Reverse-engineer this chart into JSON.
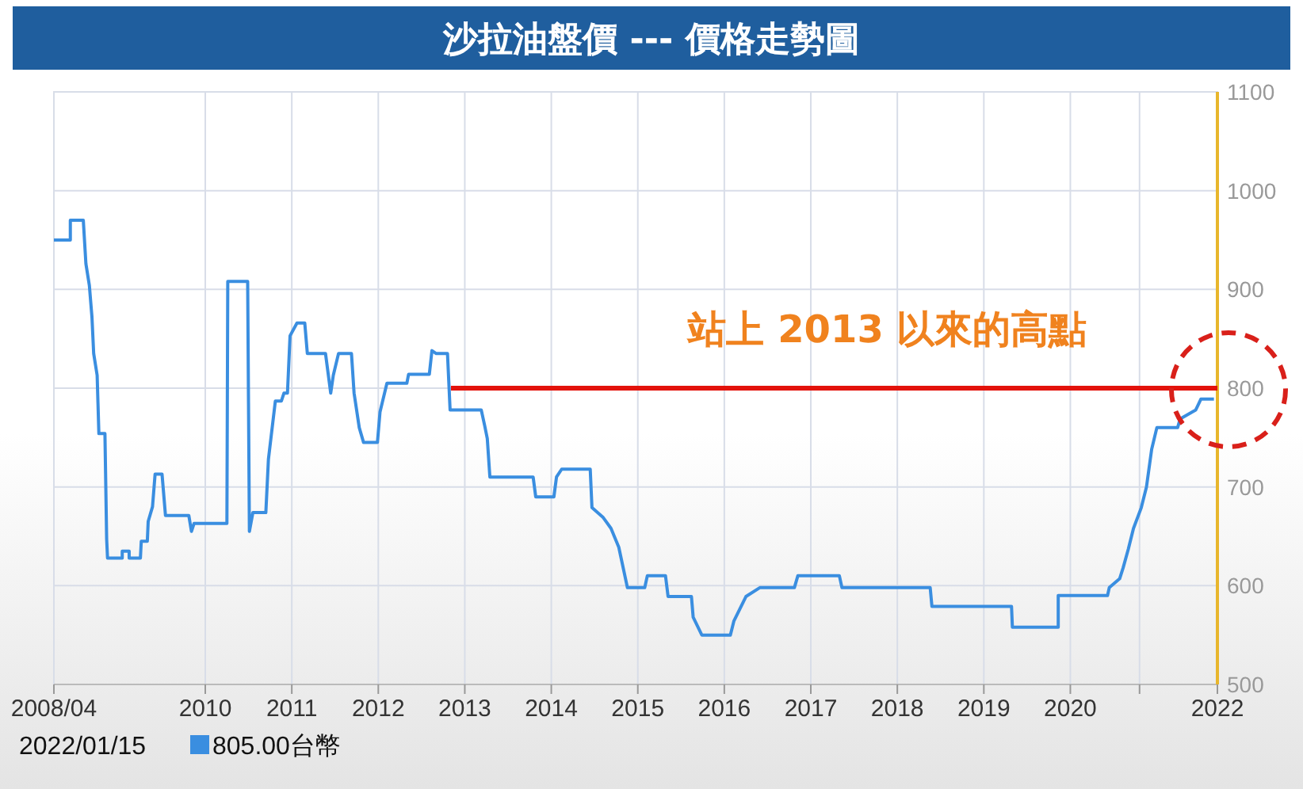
{
  "chart_data": {
    "type": "line",
    "title": "沙拉油盤價 --- 價格走勢圖",
    "xlim": [
      2008.25,
      2021.7
    ],
    "xticks": [
      {
        "value": 2008.25,
        "label": "2008/04"
      },
      2010,
      2011,
      2012,
      2013,
      2014,
      2015,
      2016,
      2017,
      2018,
      2019,
      2020,
      {
        "value": 2020.8,
        "label": null
      },
      {
        "value": 2021.7,
        "label": "2022"
      }
    ],
    "ylim": [
      500,
      1100
    ],
    "yticks": [
      500,
      600,
      700,
      800,
      900,
      1000,
      1100
    ],
    "grid": true,
    "series": [
      {
        "color": "#3a8ee0",
        "x": [
          2008.25,
          2008.44,
          2008.44,
          2008.59,
          2008.62,
          2008.66,
          2008.69,
          2008.71,
          2008.75,
          2008.77,
          2008.84,
          2008.86,
          2008.87,
          2009.04,
          2009.04,
          2009.12,
          2009.12,
          2009.25,
          2009.26,
          2009.33,
          2009.34,
          2009.39,
          2009.42,
          2009.5,
          2009.54,
          2009.81,
          2009.84,
          2009.87,
          2010.25,
          2010.26,
          2010.49,
          2010.51,
          2010.55,
          2010.7,
          2010.73,
          2010.81,
          2010.88,
          2010.91,
          2010.95,
          2010.98,
          2011.06,
          2011.15,
          2011.18,
          2011.39,
          2011.45,
          2011.48,
          2011.54,
          2011.69,
          2011.72,
          2011.78,
          2011.83,
          2011.99,
          2012.02,
          2012.1,
          2012.33,
          2012.35,
          2012.59,
          2012.62,
          2012.67,
          2012.8,
          2012.83,
          2013.19,
          2013.23,
          2013.26,
          2013.29,
          2013.79,
          2013.82,
          2014.03,
          2014.06,
          2014.12,
          2014.45,
          2014.47,
          2014.6,
          2014.69,
          2014.78,
          2014.88,
          2015.08,
          2015.11,
          2015.32,
          2015.35,
          2015.62,
          2015.64,
          2015.74,
          2016.07,
          2016.11,
          2016.25,
          2016.41,
          2016.81,
          2016.85,
          2017.33,
          2017.36,
          2018.38,
          2018.4,
          2019.32,
          2019.33,
          2019.86,
          2019.86,
          2020.43,
          2020.45,
          2020.57,
          2020.61,
          2020.67,
          2020.73,
          2020.82,
          2020.88,
          2020.94,
          2021.0,
          2021.24,
          2021.27,
          2021.45,
          2021.51,
          2021.66
        ],
        "values": [
          950,
          950,
          970,
          970,
          926,
          904,
          872,
          835,
          813,
          754,
          754,
          647,
          628,
          628,
          635,
          635,
          628,
          628,
          645,
          645,
          665,
          680,
          713,
          713,
          671,
          671,
          655,
          663,
          663,
          908,
          908,
          655,
          674,
          674,
          728,
          787,
          787,
          795,
          795,
          853,
          866,
          866,
          835,
          835,
          795,
          813,
          835,
          835,
          795,
          760,
          745,
          745,
          776,
          805,
          805,
          814,
          814,
          838,
          835,
          835,
          778,
          778,
          762,
          749,
          710,
          710,
          690,
          690,
          710,
          718,
          718,
          679,
          669,
          658,
          639,
          598,
          598,
          610,
          610,
          589,
          589,
          568,
          550,
          550,
          564,
          589,
          598,
          598,
          610,
          610,
          598,
          598,
          579,
          579,
          558,
          558,
          590,
          590,
          598,
          607,
          618,
          637,
          658,
          679,
          700,
          738,
          760,
          760,
          769,
          778,
          789,
          789
        ]
      },
      {
        "type": "line",
        "color": "#e3120b",
        "x": [
          2012.84,
          2021.7
        ],
        "values": [
          800,
          800
        ]
      }
    ],
    "annotations": [
      "站上 2013 以來的高點",
      "2022/01/15",
      "805.00台幣"
    ]
  }
}
